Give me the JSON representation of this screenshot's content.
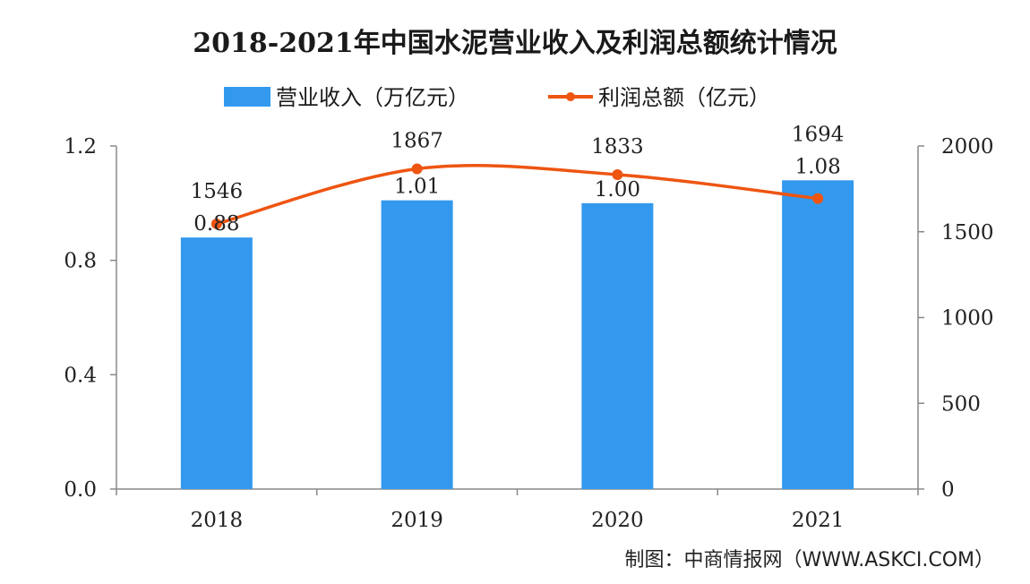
{
  "chart_data": {
    "title": "2018-2021年中国水泥营业收入及利润总额统计情况",
    "categories": [
      "2018",
      "2019",
      "2020",
      "2021"
    ],
    "series": [
      {
        "name": "营业收入（万亿元）",
        "type": "bar",
        "axis": "left",
        "color": "#3399ee",
        "values": [
          0.88,
          1.01,
          1.0,
          1.08
        ],
        "labels": [
          "0.88",
          "1.01",
          "1.00",
          "1.08"
        ]
      },
      {
        "name": "利润总额（亿元）",
        "type": "line",
        "axis": "right",
        "color": "#ee5511",
        "values": [
          1546,
          1867,
          1833,
          1694
        ],
        "labels": [
          "1546",
          "1867",
          "1833",
          "1694"
        ]
      }
    ],
    "left_axis": {
      "min": 0,
      "max": 1.2,
      "ticks": [
        "0.0",
        "0.4",
        "0.8",
        "1.2"
      ]
    },
    "right_axis": {
      "min": 0,
      "max": 2000,
      "ticks": [
        "0",
        "500",
        "1000",
        "1500",
        "2000"
      ]
    },
    "legend_position": "top-center",
    "grid": false
  },
  "source": "制图：中商情报网（WWW.ASKCI.COM）"
}
